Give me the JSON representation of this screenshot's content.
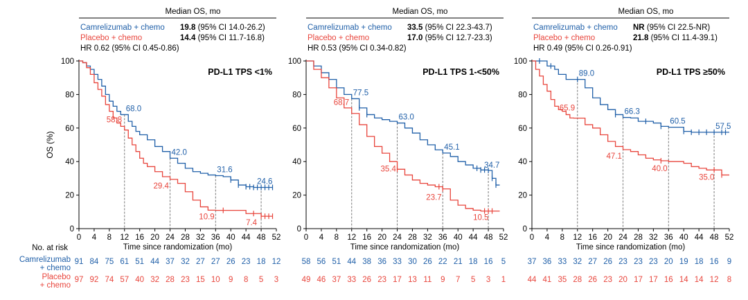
{
  "colors": {
    "camrelizumab": "#1f5fa8",
    "placebo": "#e8453c"
  },
  "risk_table_label": "No. at risk",
  "risk_rows": {
    "camrelizumab": [
      "Camrelizumab",
      "+ chemo"
    ],
    "placebo": [
      "Placebo",
      "+ chemo"
    ]
  },
  "chart_data": [
    {
      "type": "line",
      "title": "PD-L1 TPS <1%",
      "xlabel": "Time since randomization (mo)",
      "ylabel": "OS (%)",
      "xlim": [
        0,
        52
      ],
      "ylim": [
        0,
        100
      ],
      "xticks": [
        0,
        4,
        8,
        12,
        16,
        20,
        24,
        28,
        32,
        36,
        40,
        44,
        48,
        52
      ],
      "yticks": [
        0,
        20,
        40,
        60,
        80,
        100
      ],
      "summary": {
        "header": "Median OS, mo",
        "rows": [
          {
            "name": "Camrelizumab + chemo",
            "bold": "19.8",
            "rest": " (95% CI 14.0-26.2)"
          },
          {
            "name": "Placebo + chemo",
            "bold": "14.4",
            "rest": " (95% CI 11.7-16.8)"
          }
        ],
        "hr": "HR 0.62 (95% CI 0.45-0.86)"
      },
      "series": [
        {
          "name": "Camrelizumab + chemo",
          "x": [
            0,
            1,
            2,
            3,
            4,
            5,
            6,
            7,
            8,
            9,
            10,
            11,
            12,
            13,
            14,
            15,
            16,
            18,
            20,
            22,
            24,
            26,
            28,
            30,
            32,
            34,
            36,
            38,
            40,
            42,
            44,
            46,
            48,
            50,
            51
          ],
          "y": [
            100,
            99,
            97,
            95,
            92,
            89,
            85,
            80,
            76,
            73,
            70,
            68,
            68,
            64,
            61,
            58,
            56,
            53,
            49,
            46,
            42,
            39,
            36,
            34,
            33,
            32,
            31.6,
            31,
            29,
            26,
            25,
            24.6,
            24.6,
            24.6,
            24.6
          ],
          "censor_x": [
            40,
            42,
            44,
            45,
            46,
            47,
            48,
            49,
            50,
            51
          ]
        },
        {
          "name": "Placebo + chemo",
          "x": [
            0,
            1,
            2,
            3,
            4,
            5,
            6,
            7,
            8,
            9,
            10,
            11,
            12,
            13,
            14,
            15,
            16,
            17,
            18,
            20,
            22,
            24,
            26,
            28,
            30,
            32,
            34,
            36,
            38,
            40,
            44,
            48,
            51
          ],
          "y": [
            100,
            99,
            96,
            92,
            87,
            83,
            79,
            74,
            70,
            66,
            63,
            61,
            58.8,
            54,
            50,
            46,
            42,
            39,
            37,
            34,
            31,
            29.4,
            27,
            22,
            17,
            13,
            11,
            10.9,
            10.9,
            10.9,
            9,
            7.4,
            7.4
          ],
          "censor_x": [
            38,
            46,
            48,
            49,
            50,
            51
          ]
        }
      ],
      "annotations": [
        {
          "x": 12,
          "y": 68.0,
          "label": "68.0",
          "series": 0
        },
        {
          "x": 24,
          "y": 42.0,
          "label": "42.0",
          "series": 0
        },
        {
          "x": 36,
          "y": 31.6,
          "label": "31.6",
          "series": 0
        },
        {
          "x": 48,
          "y": 24.6,
          "label": "24.6",
          "series": 0
        },
        {
          "x": 12,
          "y": 58.8,
          "label": "58.8",
          "series": 1
        },
        {
          "x": 24,
          "y": 29.4,
          "label": "29.4",
          "series": 1
        },
        {
          "x": 36,
          "y": 10.9,
          "label": "10.9",
          "series": 1
        },
        {
          "x": 48,
          "y": 7.4,
          "label": "7.4",
          "series": 1
        }
      ],
      "at_risk": {
        "camrelizumab": [
          91,
          84,
          75,
          61,
          51,
          44,
          37,
          32,
          27,
          27,
          26,
          23,
          18,
          12
        ],
        "placebo": [
          97,
          92,
          74,
          57,
          40,
          32,
          28,
          23,
          15,
          10,
          9,
          8,
          5,
          3
        ]
      }
    },
    {
      "type": "line",
      "title": "PD-L1 TPS 1-<50%",
      "xlabel": "Time since randomization (mo)",
      "ylabel": "",
      "xlim": [
        0,
        52
      ],
      "ylim": [
        0,
        100
      ],
      "xticks": [
        0,
        4,
        8,
        12,
        16,
        20,
        24,
        28,
        32,
        36,
        40,
        44,
        48,
        52
      ],
      "yticks": [
        0,
        20,
        40,
        60,
        80,
        100
      ],
      "summary": {
        "header": "Median OS, mo",
        "rows": [
          {
            "name": "Camrelizumab + chemo",
            "bold": "33.5",
            "rest": " (95% CI 22.3-43.7)"
          },
          {
            "name": "Placebo + chemo",
            "bold": "17.0",
            "rest": " (95% CI 12.7-23.3)"
          }
        ],
        "hr": "HR 0.53 (95% CI 0.34-0.82)"
      },
      "series": [
        {
          "name": "Camrelizumab + chemo",
          "x": [
            0,
            2,
            4,
            6,
            8,
            10,
            12,
            14,
            16,
            18,
            20,
            22,
            24,
            26,
            28,
            30,
            32,
            34,
            36,
            38,
            40,
            42,
            44,
            46,
            48,
            49,
            50,
            51
          ],
          "y": [
            100,
            97,
            93,
            89,
            84,
            80,
            77.5,
            72,
            68,
            66,
            65,
            64,
            63.0,
            60,
            57,
            53,
            50,
            47,
            45.1,
            43,
            40,
            38,
            36,
            35,
            34.7,
            30,
            26,
            26
          ],
          "censor_x": [
            14,
            16,
            45,
            46,
            47,
            48,
            49,
            50
          ]
        },
        {
          "name": "Placebo + chemo",
          "x": [
            0,
            2,
            4,
            6,
            8,
            10,
            12,
            14,
            16,
            18,
            20,
            22,
            24,
            26,
            28,
            30,
            32,
            34,
            36,
            38,
            40,
            42,
            44,
            46,
            48,
            51
          ],
          "y": [
            100,
            95,
            90,
            84,
            78,
            72,
            68.7,
            62,
            55,
            49,
            45,
            40,
            35.4,
            32,
            29,
            27,
            26,
            25,
            23.7,
            17,
            14,
            12,
            11,
            10.5,
            10.5,
            10.5
          ],
          "censor_x": [
            24,
            35,
            36,
            47,
            48,
            49
          ]
        }
      ],
      "annotations": [
        {
          "x": 12,
          "y": 77.5,
          "label": "77.5",
          "series": 0
        },
        {
          "x": 24,
          "y": 63.0,
          "label": "63.0",
          "series": 0
        },
        {
          "x": 36,
          "y": 45.1,
          "label": "45.1",
          "series": 0
        },
        {
          "x": 48,
          "y": 34.7,
          "label": "34.7",
          "series": 0
        },
        {
          "x": 12,
          "y": 68.7,
          "label": "68.7",
          "series": 1
        },
        {
          "x": 24,
          "y": 35.4,
          "label": "35.4",
          "series": 1
        },
        {
          "x": 36,
          "y": 23.7,
          "label": "23.7",
          "series": 1
        },
        {
          "x": 48,
          "y": 10.5,
          "label": "10.5",
          "series": 1
        }
      ],
      "at_risk": {
        "camrelizumab": [
          58,
          56,
          51,
          44,
          38,
          36,
          33,
          30,
          26,
          22,
          21,
          18,
          16,
          5
        ],
        "placebo": [
          49,
          46,
          37,
          33,
          26,
          23,
          17,
          13,
          11,
          9,
          7,
          5,
          3,
          1
        ]
      }
    },
    {
      "type": "line",
      "title": "PD-L1 TPS ≥50%",
      "xlabel": "Time since randomization (mo)",
      "ylabel": "",
      "xlim": [
        0,
        52
      ],
      "ylim": [
        0,
        100
      ],
      "xticks": [
        0,
        4,
        8,
        12,
        16,
        20,
        24,
        28,
        32,
        36,
        40,
        44,
        48,
        52
      ],
      "yticks": [
        0,
        20,
        40,
        60,
        80,
        100
      ],
      "summary": {
        "header": "Median OS, mo",
        "rows": [
          {
            "name": "Camrelizumab + chemo",
            "bold": "NR",
            "rest": " (95% CI 22.5-NR)"
          },
          {
            "name": "Placebo + chemo",
            "bold": "21.8",
            "rest": " (95% CI 11.4-39.1)"
          }
        ],
        "hr": "HR 0.49 (95% CI 0.26-0.91)"
      },
      "series": [
        {
          "name": "Camrelizumab + chemo",
          "x": [
            0,
            4,
            6,
            7,
            9,
            12,
            14,
            16,
            18,
            20,
            22,
            24,
            26,
            28,
            30,
            32,
            34,
            36,
            38,
            40,
            42,
            44,
            46,
            48,
            50,
            52
          ],
          "y": [
            100,
            97,
            95,
            92,
            89,
            89.0,
            84,
            78,
            74,
            71,
            68,
            66.3,
            66,
            64,
            64,
            63,
            61,
            60.5,
            60.5,
            58,
            57.5,
            57.5,
            57.5,
            57.5,
            57.5,
            57.5
          ],
          "censor_x": [
            2,
            5,
            12,
            22,
            30,
            34,
            40,
            42,
            44,
            46,
            48,
            50,
            51
          ]
        },
        {
          "name": "Placebo + chemo",
          "x": [
            0,
            1,
            2,
            3,
            4,
            5,
            6,
            7,
            8,
            9,
            10,
            11,
            12,
            14,
            16,
            18,
            20,
            22,
            24,
            26,
            28,
            30,
            32,
            34,
            36,
            38,
            40,
            42,
            44,
            46,
            48,
            50,
            52
          ],
          "y": [
            100,
            95,
            91,
            86,
            82,
            77,
            73,
            71,
            70,
            68,
            66,
            65.9,
            65.9,
            62,
            60,
            56,
            52,
            49,
            47.1,
            46,
            44,
            42,
            41,
            40.5,
            40.0,
            40,
            39,
            37,
            36,
            35,
            35.0,
            32,
            32
          ],
          "censor_x": [
            34,
            48,
            50
          ]
        }
      ],
      "annotations": [
        {
          "x": 12,
          "y": 89.0,
          "label": "89.0",
          "series": 0
        },
        {
          "x": 24,
          "y": 66.3,
          "label": "66.3",
          "series": 0
        },
        {
          "x": 36,
          "y": 60.5,
          "label": "60.5",
          "series": 0
        },
        {
          "x": 48,
          "y": 57.5,
          "label": "57.5",
          "series": 0
        },
        {
          "x": 12,
          "y": 65.9,
          "label": "65.9",
          "series": 1
        },
        {
          "x": 24,
          "y": 47.1,
          "label": "47.1",
          "series": 1
        },
        {
          "x": 36,
          "y": 40.0,
          "label": "40.0",
          "series": 1
        },
        {
          "x": 48,
          "y": 35.0,
          "label": "35.0",
          "series": 1
        }
      ],
      "at_risk": {
        "camrelizumab": [
          37,
          36,
          33,
          32,
          27,
          26,
          23,
          23,
          23,
          20,
          19,
          18,
          16,
          9
        ],
        "placebo": [
          44,
          41,
          35,
          28,
          26,
          23,
          20,
          17,
          17,
          16,
          14,
          14,
          12,
          8
        ]
      }
    }
  ]
}
